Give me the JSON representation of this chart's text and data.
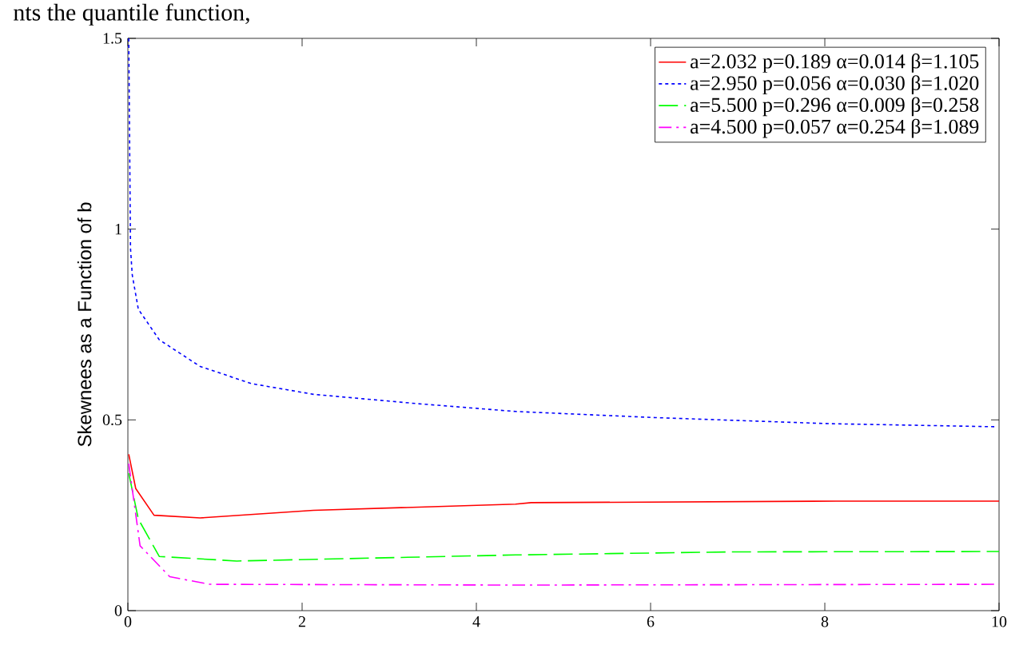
{
  "chart_data": {
    "type": "line",
    "ylabel": "Skewnees as a Function of b",
    "annotations": [
      "nts the quantile function,"
    ],
    "xlim": [
      0,
      10
    ],
    "ylim": [
      0,
      1.5
    ],
    "xticks": [
      0,
      2,
      4,
      6,
      8,
      10
    ],
    "yticks": [
      0,
      0.5,
      1,
      1.5
    ],
    "grid": false,
    "legend": "top right",
    "marker": "none",
    "series": [
      {
        "name": "a=2.032  p=0.189  α=0.014  β=1.105",
        "color": "#ff0000",
        "line_style": "solid",
        "x": [
          0.01,
          0.09,
          0.3,
          0.83,
          2.13,
          4.45,
          4.63,
          8.13,
          10
        ],
        "values": [
          0.41,
          0.32,
          0.25,
          0.243,
          0.263,
          0.279,
          0.283,
          0.287,
          0.287
        ]
      },
      {
        "name": "a=2.950  p=0.056  α=0.030  β=1.020",
        "color": "#0000ff",
        "line_style": "dotted",
        "x": [
          0.01,
          0.03,
          0.05,
          0.12,
          0.36,
          0.83,
          1.42,
          2.13,
          3.3,
          4.45,
          6.05,
          8.06,
          9.96
        ],
        "values": [
          1.5,
          0.95,
          0.88,
          0.79,
          0.71,
          0.64,
          0.595,
          0.567,
          0.543,
          0.522,
          0.506,
          0.49,
          0.482
        ]
      },
      {
        "name": "a=5.500  p=0.296  α=0.009  β=0.258",
        "color": "#00ff00",
        "line_style": "dashed",
        "x": [
          0.01,
          0.12,
          0.36,
          1.25,
          4.45,
          6.94,
          10
        ],
        "values": [
          0.36,
          0.24,
          0.142,
          0.13,
          0.146,
          0.154,
          0.155
        ]
      },
      {
        "name": "a=4.500  p=0.057  α=0.254  β=1.089",
        "color": "#ff00ff",
        "line_style": "dashdot",
        "x": [
          0.01,
          0.14,
          0.48,
          0.94,
          4.45,
          10
        ],
        "values": [
          0.385,
          0.17,
          0.089,
          0.069,
          0.067,
          0.069
        ]
      }
    ]
  }
}
